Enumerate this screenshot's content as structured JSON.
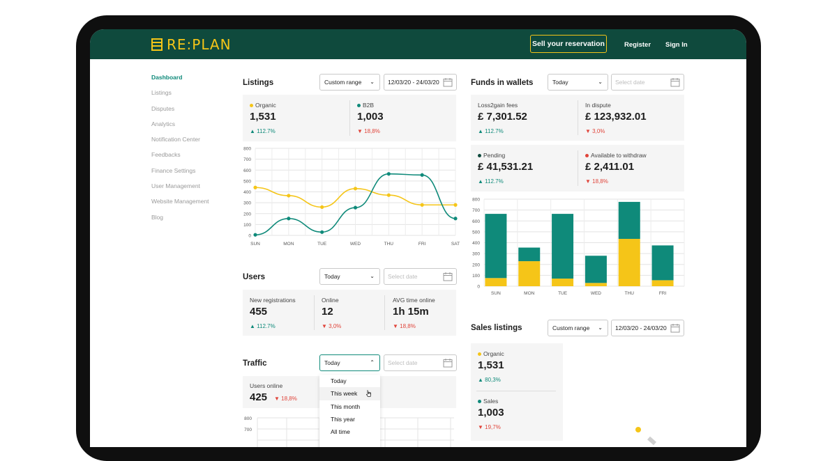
{
  "header": {
    "logo_text": "RE:PLAN",
    "sell_button": "Sell your reservation",
    "register": "Register",
    "sign_in": "Sign In"
  },
  "sidebar": {
    "items": [
      {
        "label": "Dashboard",
        "active": true
      },
      {
        "label": "Listings"
      },
      {
        "label": "Disputes"
      },
      {
        "label": "Analytics"
      },
      {
        "label": "Notification Center"
      },
      {
        "label": "Feedbacks"
      },
      {
        "label": "Finance Settings"
      },
      {
        "label": "User Management"
      },
      {
        "label": "Website Management"
      },
      {
        "label": "Blog"
      }
    ]
  },
  "listings": {
    "title": "Listings",
    "range_select": "Custom range",
    "date_value": "12/03/20 - 24/03/20",
    "organic_label": "Organic",
    "organic_value": "1,531",
    "organic_change": "112.7%",
    "b2b_label": "B2B",
    "b2b_value": "1,003",
    "b2b_change": "18,8%"
  },
  "users": {
    "title": "Users",
    "range_select": "Today",
    "date_placeholder": "Select date",
    "new_label": "New registrations",
    "new_value": "455",
    "new_change": "112.7%",
    "online_label": "Online",
    "online_value": "12",
    "online_change": "3,0%",
    "avg_label": "AVG time online",
    "avg_value": "1h 15m",
    "avg_change": "18,8%"
  },
  "traffic": {
    "title": "Traffic",
    "range_select": "Today",
    "date_placeholder": "Select date",
    "online_label": "Users online",
    "online_value": "425",
    "online_change": "18,8%",
    "dropdown_options": [
      "Today",
      "This week",
      "This month",
      "This year",
      "All time"
    ],
    "y_ticks": [
      "800",
      "700"
    ]
  },
  "funds": {
    "title": "Funds in wallets",
    "range_select": "Today",
    "date_placeholder": "Select date",
    "fees_label": "Loss2gain fees",
    "fees_value": "£ 7,301.52",
    "fees_change": "112.7%",
    "dispute_label": "In dispute",
    "dispute_value": "£ 123,932.01",
    "dispute_change": "3,0%",
    "pending_label": "Pending",
    "pending_value": "£ 41,531.21",
    "pending_change": "112.7%",
    "withdraw_label": "Available to withdraw",
    "withdraw_value": "£ 2,411.01",
    "withdraw_change": "18,8%"
  },
  "sales": {
    "title": "Sales listings",
    "range_select": "Custom range",
    "date_value": "12/03/20 - 24/03/20",
    "organic_label": "Organic",
    "organic_value": "1,531",
    "organic_change": "80,3%",
    "sales_label": "Sales",
    "sales_value": "1,003",
    "sales_change": "19,7%"
  },
  "colors": {
    "brand_dark": "#0f4a3d",
    "accent_yellow": "#f5c518",
    "teal": "#0f8a7a",
    "red": "#e0443a"
  },
  "chart_data": [
    {
      "type": "line",
      "x": [
        "SUN",
        "MON",
        "TUE",
        "WED",
        "THU",
        "FRI",
        "SAT"
      ],
      "ylim": [
        0,
        800
      ],
      "yticks": [
        0,
        100,
        200,
        300,
        400,
        500,
        600,
        700,
        800
      ],
      "grid": true,
      "series": [
        {
          "name": "Organic",
          "color": "#f5c518",
          "values": [
            440,
            365,
            260,
            430,
            370,
            280,
            280
          ]
        },
        {
          "name": "B2B",
          "color": "#0f8a7a",
          "values": [
            5,
            155,
            30,
            255,
            565,
            555,
            155
          ]
        }
      ]
    },
    {
      "type": "bar",
      "stacked": true,
      "categories": [
        "SUN",
        "MON",
        "TUE",
        "WED",
        "THU",
        "FRI"
      ],
      "ylim": [
        0,
        800
      ],
      "yticks": [
        0,
        100,
        200,
        300,
        400,
        500,
        600,
        700,
        800
      ],
      "grid": true,
      "series": [
        {
          "color": "#f5c518",
          "values": [
            75,
            230,
            70,
            30,
            435,
            55
          ]
        },
        {
          "color": "#0f8a7a",
          "values": [
            590,
            125,
            595,
            250,
            340,
            320
          ]
        }
      ]
    }
  ]
}
